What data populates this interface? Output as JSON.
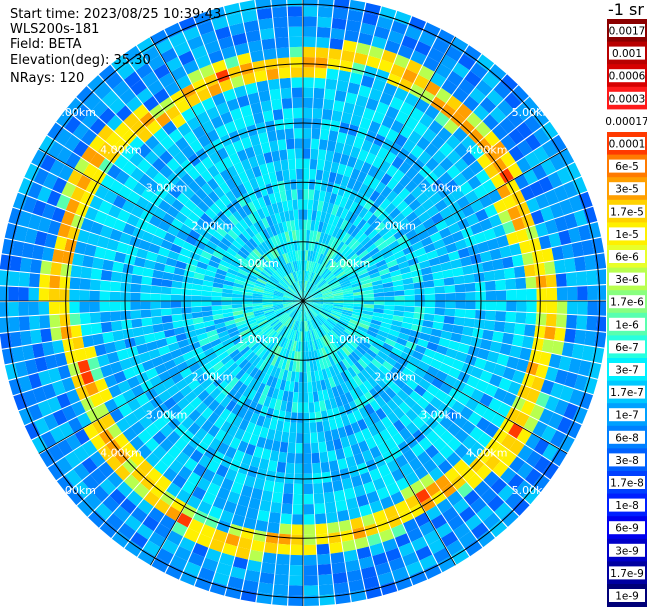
{
  "header": {
    "start_time": "Start time: 2023/08/25 10:39:43",
    "device": "WLS200s-181",
    "field": "Field: BETA",
    "elevation": "Elevation(deg): 35.30",
    "nrays": "NRays: 120"
  },
  "colorbar": {
    "unit": "-1 sr",
    "labels": [
      "0.0017",
      "0.001",
      "0.0006",
      "0.0003",
      "0.00017",
      "0.0001",
      "6e-5",
      "3e-5",
      "1.7e-5",
      "1e-5",
      "6e-6",
      "3e-6",
      "1.7e-6",
      "1e-6",
      "6e-7",
      "3e-7",
      "1.7e-7",
      "1e-7",
      "6e-8",
      "3e-8",
      "1.7e-8",
      "1e-8",
      "6e-9",
      "3e-9",
      "1.7e-9",
      "1e-9"
    ],
    "colors": [
      "#8b0000",
      "#b80000",
      "#d60000",
      "#ff1a1a",
      "#ffffff",
      "#ff3a00",
      "#ff7a00",
      "#ff9f00",
      "#ffd200",
      "#fff000",
      "#e8ff2a",
      "#b8ff4f",
      "#88ff7f",
      "#58ffaf",
      "#28ffdf",
      "#00f0ff",
      "#00c8ff",
      "#00a0ff",
      "#0080ff",
      "#0060ff",
      "#0040ff",
      "#0020ff",
      "#0000ee",
      "#0000c8",
      "#0000a0",
      "#000078"
    ]
  },
  "chart_data": {
    "type": "heatmap",
    "projection": "polar",
    "n_rays": 120,
    "range_max_km": 5.5,
    "range_rings_km": [
      1.0,
      2.0,
      3.0,
      4.0,
      5.0
    ],
    "ring_labels": [
      "1.00km",
      "2.00km",
      "3.00km",
      "4.00km",
      "5.00km"
    ],
    "spoke_count": 12,
    "background_level": "1e-7",
    "aerosol_ring": {
      "range_km": [
        4.1,
        4.6
      ],
      "peak": "1.7e-5"
    },
    "inner_zone": {
      "range_km": [
        0.0,
        1.2
      ],
      "level": "1.7e-7"
    }
  }
}
